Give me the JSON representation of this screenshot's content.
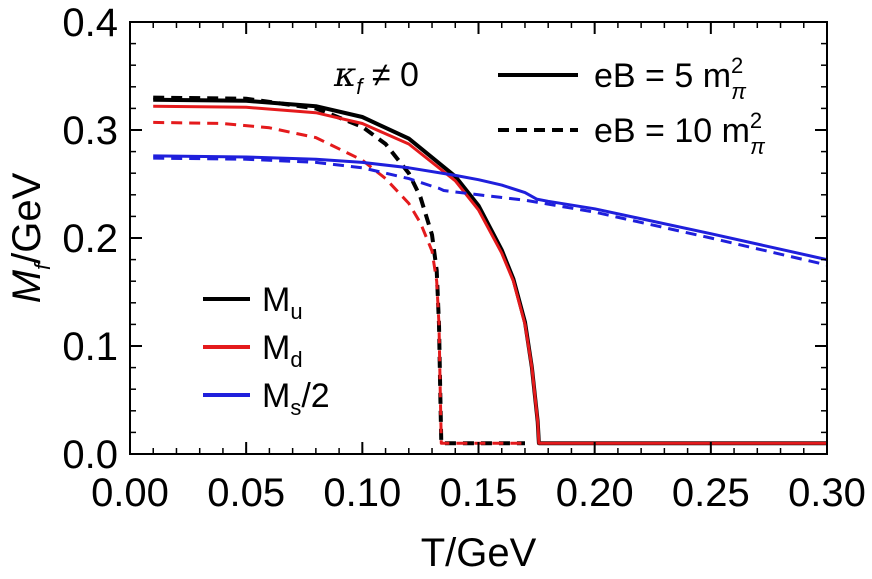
{
  "chart_data": {
    "type": "line",
    "xlabel": "T/GeV",
    "ylabel_main": "M",
    "ylabel_sub": "f",
    "ylabel_rest": "/GeV",
    "xlim": [
      0.0,
      0.3
    ],
    "ylim": [
      0.0,
      0.4
    ],
    "xticks": [
      "0.00",
      "0.05",
      "0.10",
      "0.15",
      "0.20",
      "0.25",
      "0.30"
    ],
    "yticks": [
      "0.0",
      "0.1",
      "0.2",
      "0.3",
      "0.4"
    ],
    "grid": false,
    "annotation": {
      "kappa": "κ",
      "kappa_sub": "f",
      "rest": " ≠ 0"
    },
    "style_legend": [
      {
        "label_main": "eB = 5 m",
        "label_sup": "2",
        "label_sub": "π",
        "dash": "solid"
      },
      {
        "label_main": "eB = 10 m",
        "label_sup": "2",
        "label_sub": "π",
        "dash": "dashed"
      }
    ],
    "flavor_legend": [
      {
        "label_main": "M",
        "label_sub": "u",
        "color": "#000000"
      },
      {
        "label_main": "M",
        "label_sub": "d",
        "color": "#e41a1c"
      },
      {
        "label_main": "M",
        "label_sub": "s",
        "label_rest": "/2",
        "color": "#1f1fdc"
      }
    ],
    "series": [
      {
        "flavor": "u",
        "eB": 5,
        "color": "#000000",
        "dash": "solid",
        "x": [
          0.01,
          0.05,
          0.08,
          0.1,
          0.12,
          0.14,
          0.15,
          0.16,
          0.165,
          0.17,
          0.173,
          0.1755,
          0.176,
          0.177,
          0.2,
          0.25,
          0.3
        ],
        "y": [
          0.328,
          0.327,
          0.322,
          0.312,
          0.292,
          0.257,
          0.23,
          0.189,
          0.162,
          0.122,
          0.08,
          0.03,
          0.01,
          0.01,
          0.01,
          0.01,
          0.01
        ]
      },
      {
        "flavor": "u",
        "eB": 10,
        "color": "#000000",
        "dash": "dashed",
        "x": [
          0.01,
          0.05,
          0.08,
          0.1,
          0.11,
          0.12,
          0.125,
          0.13,
          0.132,
          0.133,
          0.1335,
          0.134,
          0.15,
          0.17
        ],
        "y": [
          0.33,
          0.329,
          0.32,
          0.303,
          0.287,
          0.26,
          0.238,
          0.203,
          0.17,
          0.12,
          0.06,
          0.01,
          0.01,
          0.01
        ]
      },
      {
        "flavor": "d",
        "eB": 5,
        "color": "#e41a1c",
        "dash": "solid",
        "x": [
          0.01,
          0.05,
          0.08,
          0.1,
          0.12,
          0.14,
          0.15,
          0.16,
          0.165,
          0.17,
          0.173,
          0.1755,
          0.176,
          0.177,
          0.2,
          0.25,
          0.3
        ],
        "y": [
          0.322,
          0.321,
          0.316,
          0.306,
          0.287,
          0.253,
          0.226,
          0.186,
          0.16,
          0.12,
          0.08,
          0.03,
          0.01,
          0.01,
          0.01,
          0.01,
          0.01
        ]
      },
      {
        "flavor": "d",
        "eB": 10,
        "color": "#e41a1c",
        "dash": "dashed",
        "x": [
          0.01,
          0.04,
          0.06,
          0.08,
          0.1,
          0.11,
          0.12,
          0.125,
          0.13,
          0.132,
          0.133,
          0.1335,
          0.134,
          0.15,
          0.17
        ],
        "y": [
          0.307,
          0.306,
          0.302,
          0.293,
          0.272,
          0.255,
          0.232,
          0.214,
          0.188,
          0.16,
          0.12,
          0.06,
          0.01,
          0.01,
          0.01
        ]
      },
      {
        "flavor": "s",
        "eB": 5,
        "color": "#1f1fdc",
        "dash": "solid",
        "x": [
          0.01,
          0.05,
          0.08,
          0.1,
          0.12,
          0.14,
          0.15,
          0.16,
          0.17,
          0.175,
          0.18,
          0.2,
          0.25,
          0.3
        ],
        "y": [
          0.276,
          0.275,
          0.273,
          0.27,
          0.265,
          0.258,
          0.254,
          0.249,
          0.242,
          0.236,
          0.234,
          0.227,
          0.204,
          0.18
        ]
      },
      {
        "flavor": "s",
        "eB": 10,
        "color": "#1f1fdc",
        "dash": "dashed",
        "x": [
          0.01,
          0.05,
          0.08,
          0.1,
          0.12,
          0.13,
          0.133,
          0.135,
          0.15,
          0.17,
          0.2,
          0.25,
          0.3
        ],
        "y": [
          0.274,
          0.273,
          0.27,
          0.265,
          0.255,
          0.248,
          0.246,
          0.244,
          0.24,
          0.235,
          0.224,
          0.2,
          0.175
        ]
      }
    ]
  }
}
